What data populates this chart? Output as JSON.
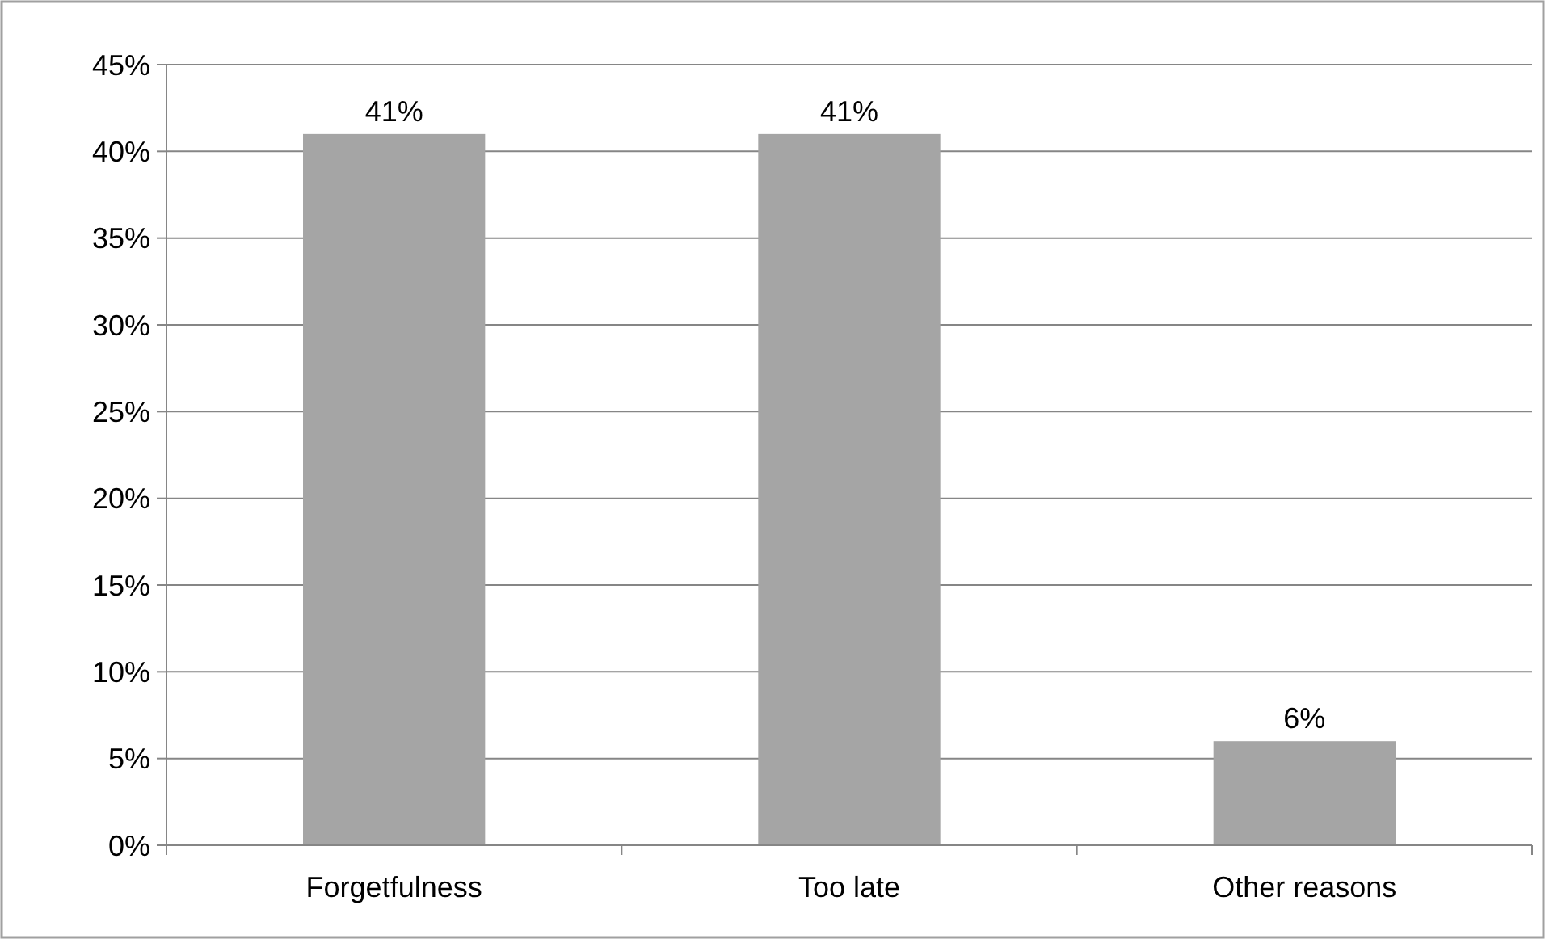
{
  "chart_data": {
    "type": "bar",
    "categories": [
      "Forgetfulness",
      "Too late",
      "Other reasons"
    ],
    "values": [
      41,
      41,
      6
    ],
    "value_labels": [
      "41%",
      "41%",
      "6%"
    ],
    "color": "#a5a5a5",
    "ylim": [
      0,
      45
    ],
    "yticks": [
      {
        "value": 0,
        "label": "0%"
      },
      {
        "value": 5,
        "label": "5%"
      },
      {
        "value": 10,
        "label": "10%"
      },
      {
        "value": 15,
        "label": "15%"
      },
      {
        "value": 20,
        "label": "20%"
      },
      {
        "value": 25,
        "label": "25%"
      },
      {
        "value": 30,
        "label": "30%"
      },
      {
        "value": 35,
        "label": "35%"
      },
      {
        "value": 40,
        "label": "40%"
      },
      {
        "value": 45,
        "label": "45%"
      }
    ],
    "grid": "y"
  }
}
